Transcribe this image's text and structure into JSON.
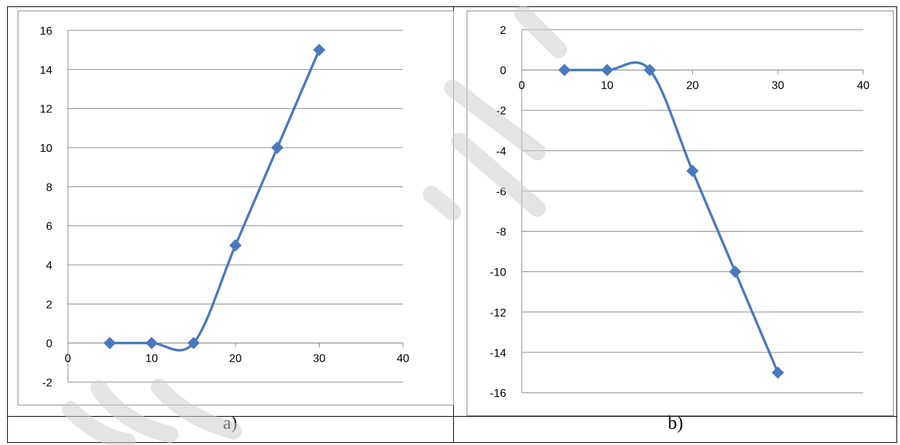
{
  "captions": {
    "a": "a)",
    "b": "b)"
  },
  "colors": {
    "series": "#4a78be",
    "grid": "#8a8a8a",
    "axis": "#8a8a8a",
    "watermark": "#cfcfcf"
  },
  "chart_data": [
    {
      "type": "line",
      "smooth": true,
      "marker": "diamond",
      "x": [
        5,
        10,
        15,
        20,
        25,
        30
      ],
      "series": [
        {
          "values": [
            0,
            0,
            0,
            5,
            10,
            15
          ]
        }
      ],
      "xlim": [
        0,
        40
      ],
      "ylim": [
        -2,
        16
      ],
      "xticks": [
        0,
        10,
        20,
        30,
        40
      ],
      "yticks": [
        -2,
        0,
        2,
        4,
        6,
        8,
        10,
        12,
        14,
        16
      ],
      "grid": "horizontal"
    },
    {
      "type": "line",
      "smooth": true,
      "marker": "diamond",
      "x": [
        5,
        10,
        15,
        20,
        25,
        30
      ],
      "series": [
        {
          "values": [
            0,
            0,
            0,
            -5,
            -10,
            -15
          ]
        }
      ],
      "xlim": [
        0,
        40
      ],
      "ylim": [
        -16,
        2
      ],
      "xticks": [
        0,
        10,
        20,
        30,
        40
      ],
      "yticks": [
        -16,
        -14,
        -12,
        -10,
        -8,
        -6,
        -4,
        -2,
        0,
        2
      ],
      "grid": "horizontal"
    }
  ]
}
